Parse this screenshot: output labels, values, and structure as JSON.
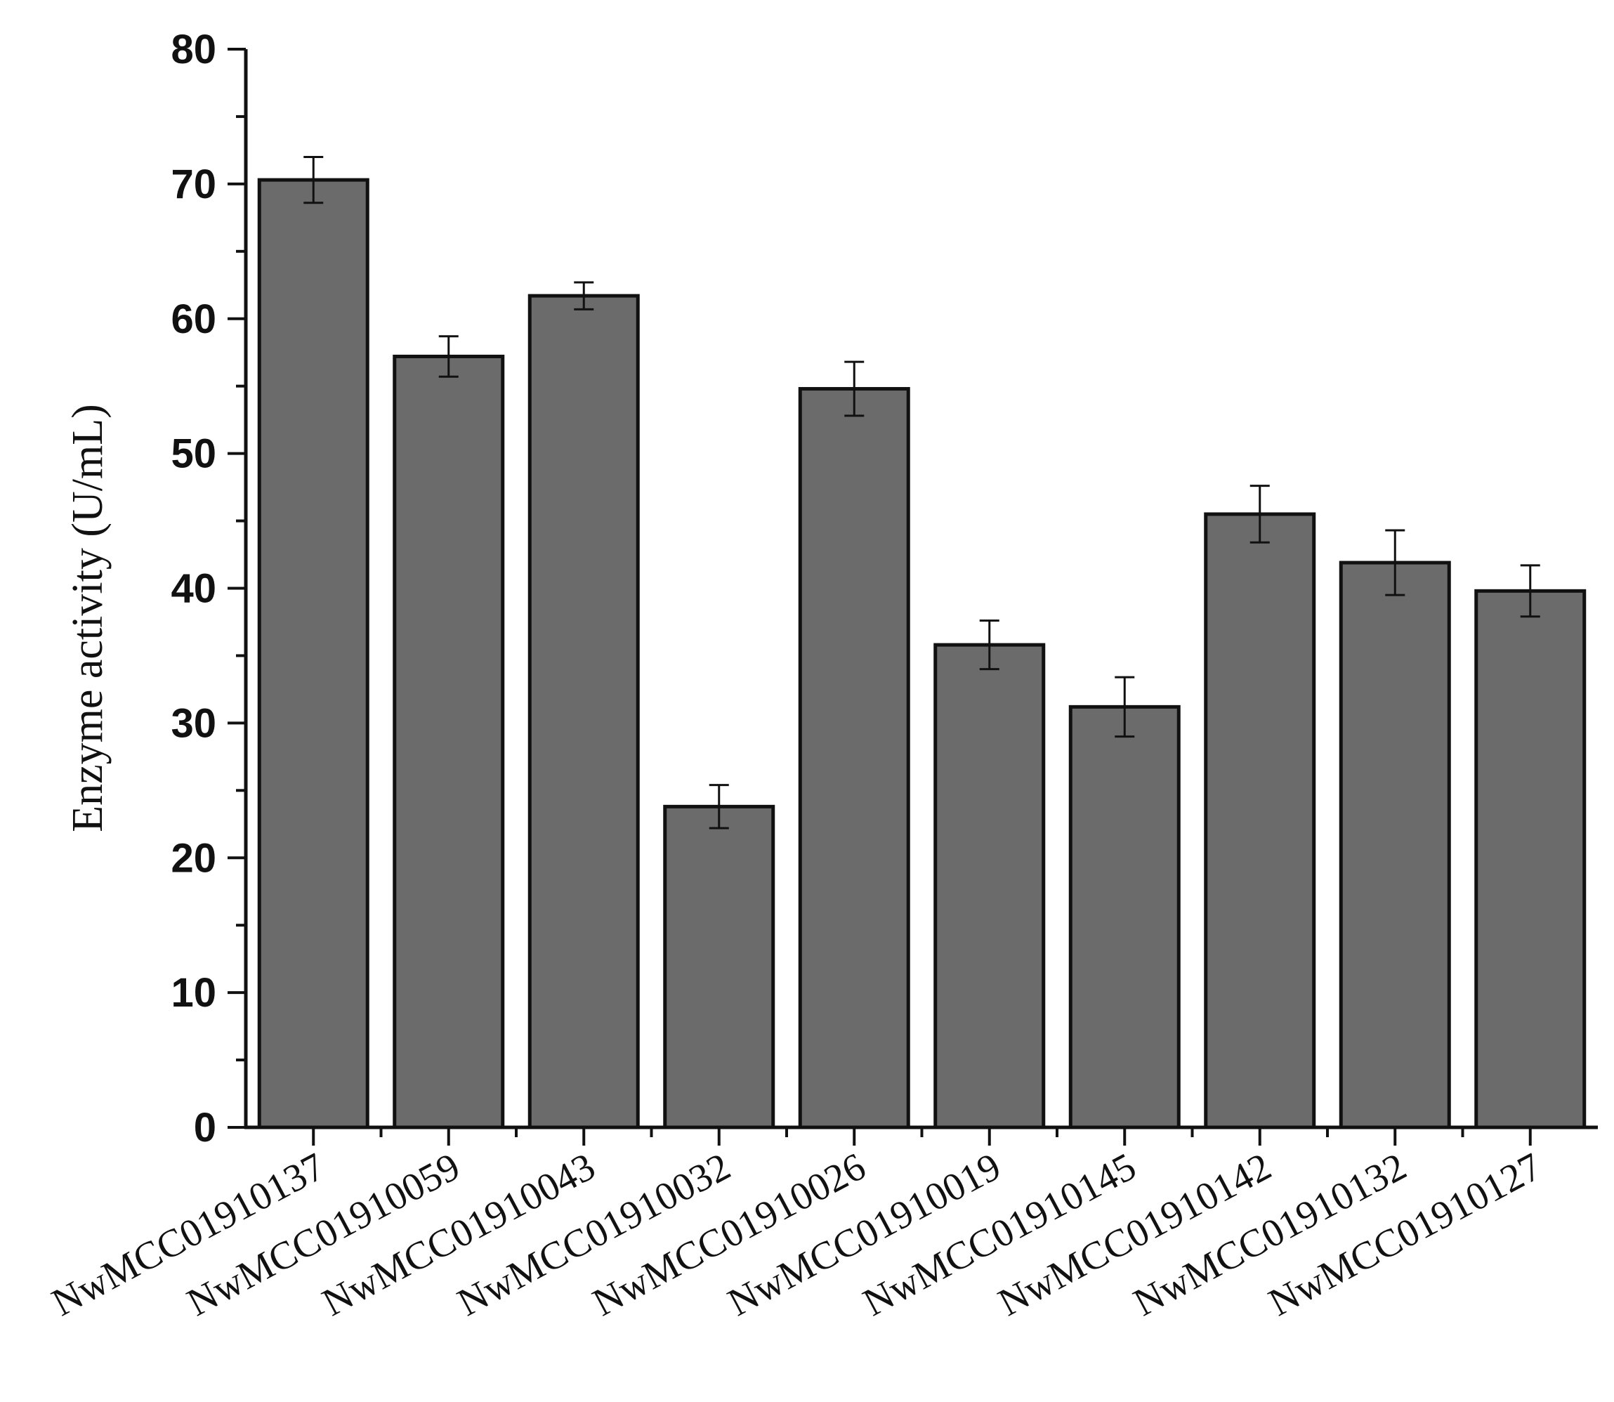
{
  "chart_data": {
    "type": "bar",
    "title": "",
    "xlabel": "",
    "ylabel": "Enzyme activity (U/mL)",
    "ylim": [
      0,
      80
    ],
    "yticks": [
      "0",
      "10",
      "20",
      "30",
      "40",
      "50",
      "60",
      "70",
      "80"
    ],
    "grid": false,
    "legend": "none",
    "bar_color": "#6b6b6b",
    "edge_color": "#111111",
    "categories": [
      "NwMCC01910137",
      "NwMCC01910059",
      "NwMCC01910043",
      "NwMCC01910032",
      "NwMCC01910026",
      "NwMCC01910019",
      "NwMCC01910145",
      "NwMCC01910142",
      "NwMCC01910132",
      "NwMCC01910127"
    ],
    "values": [
      70.3,
      57.2,
      61.7,
      23.8,
      54.8,
      35.8,
      31.2,
      45.5,
      41.9,
      39.8
    ],
    "errors": [
      1.7,
      1.5,
      1.0,
      1.6,
      2.0,
      1.8,
      2.2,
      2.1,
      2.4,
      1.9
    ]
  }
}
